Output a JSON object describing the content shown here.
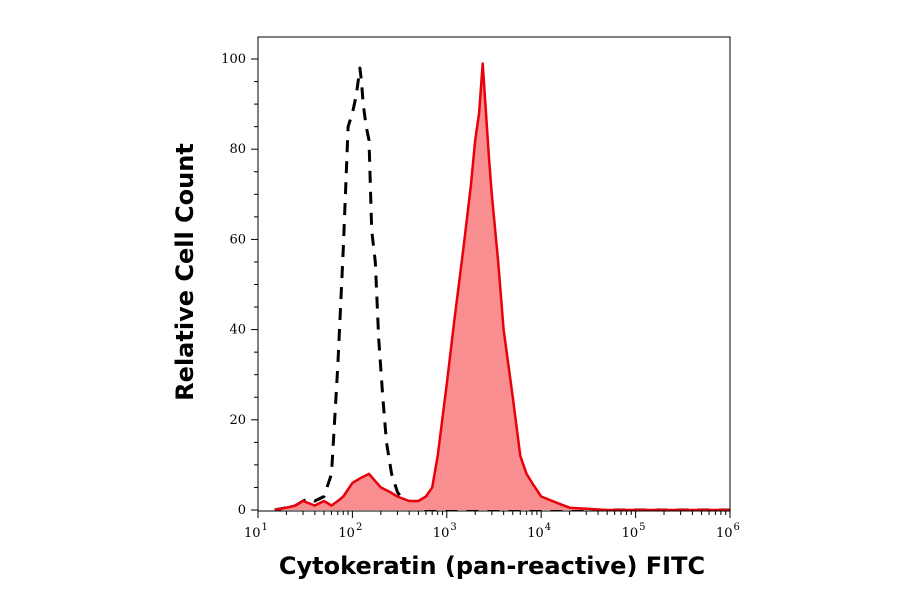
{
  "chart_data": {
    "type": "area",
    "xlabel": "Cytokeratin (pan-reactive) FITC",
    "ylabel": "Relative Cell Count",
    "x_scale": "log",
    "xlim": [
      10,
      1000000
    ],
    "ylim": [
      0,
      105
    ],
    "x_ticks": [
      {
        "base": "10",
        "exp": "1"
      },
      {
        "base": "10",
        "exp": "2"
      },
      {
        "base": "10",
        "exp": "3"
      },
      {
        "base": "10",
        "exp": "4"
      },
      {
        "base": "10",
        "exp": "5"
      },
      {
        "base": "10",
        "exp": "6"
      }
    ],
    "y_ticks": [
      "0",
      "20",
      "40",
      "60",
      "80",
      "100"
    ],
    "grid": false,
    "legend": "none",
    "series": [
      {
        "style": "dashed-outline",
        "color": "#000000",
        "x": [
          15,
          20,
          25,
          30,
          35,
          40,
          50,
          60,
          70,
          80,
          90,
          100,
          110,
          120,
          125,
          130,
          140,
          150,
          160,
          175,
          190,
          210,
          230,
          260,
          300,
          350,
          400,
          500,
          600,
          800,
          1000,
          1500,
          2000,
          3000,
          5000,
          10000,
          100000,
          1000000
        ],
        "y": [
          0,
          0.5,
          1,
          2,
          2.5,
          2,
          3,
          8,
          32,
          58,
          85,
          88,
          92,
          98,
          95,
          90,
          85,
          82,
          62,
          55,
          38,
          25,
          15,
          8,
          4,
          2,
          1,
          0.5,
          0,
          0,
          0,
          0,
          0,
          0,
          0,
          0,
          0,
          0
        ]
      },
      {
        "style": "filled",
        "color": "#e8000b",
        "fill": "#f98e90",
        "x": [
          15,
          20,
          25,
          30,
          40,
          50,
          60,
          70,
          80,
          100,
          120,
          150,
          200,
          250,
          300,
          400,
          500,
          600,
          700,
          800,
          1000,
          1200,
          1500,
          1800,
          2000,
          2200,
          2400,
          2600,
          2800,
          3000,
          3500,
          4000,
          5000,
          6000,
          7000,
          8000,
          10000,
          15000,
          20000,
          50000,
          100000,
          1000000
        ],
        "y": [
          0,
          0.5,
          1,
          2,
          1,
          2,
          1,
          2,
          3,
          6,
          7,
          8,
          5,
          4,
          3,
          2,
          2,
          3,
          5,
          12,
          28,
          42,
          58,
          72,
          82,
          88,
          99,
          88,
          78,
          70,
          55,
          40,
          25,
          12,
          8,
          6,
          3,
          1.5,
          0.5,
          0,
          0,
          0
        ]
      }
    ]
  }
}
